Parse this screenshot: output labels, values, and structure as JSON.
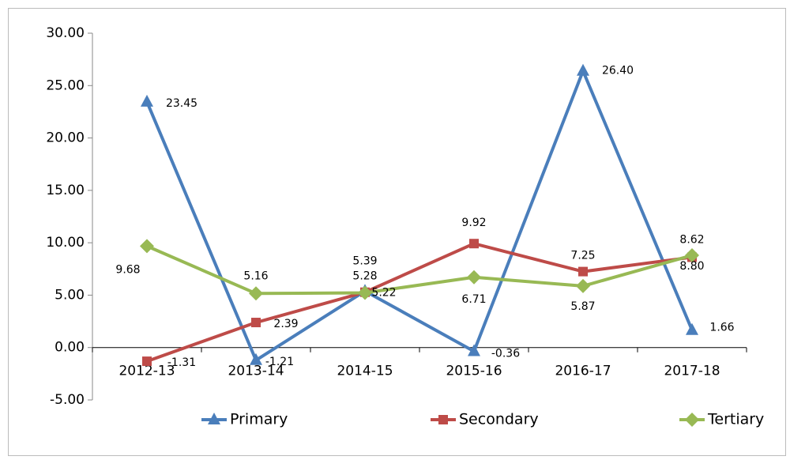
{
  "chart_data": {
    "type": "line",
    "categories": [
      "2012-13",
      "2013-14",
      "2014-15",
      "2015-16",
      "2016-17",
      "2017-18"
    ],
    "series": [
      {
        "name": "Primary",
        "color": "#4a7ebb",
        "marker": "triangle",
        "values": [
          23.45,
          -1.21,
          5.39,
          -0.36,
          26.4,
          1.66
        ],
        "value_labels": [
          "23.45",
          "-1.21",
          "5.39",
          "-0.36",
          "26.40",
          "1.66"
        ]
      },
      {
        "name": "Secondary",
        "color": "#be4b48",
        "marker": "square",
        "values": [
          -1.31,
          2.39,
          5.28,
          9.92,
          7.25,
          8.62
        ],
        "value_labels": [
          "-1.31",
          "2.39",
          "5.28",
          "9.92",
          "7.25",
          "8.62"
        ]
      },
      {
        "name": "Tertiary",
        "color": "#98b954",
        "marker": "diamond",
        "values": [
          9.68,
          5.16,
          5.22,
          6.71,
          5.87,
          8.8
        ],
        "value_labels": [
          "9.68",
          "5.16",
          "5.22",
          "6.71",
          "5.87",
          "8.80"
        ]
      }
    ],
    "ylim": [
      -5,
      30
    ],
    "yticks": [
      {
        "value": -5,
        "label": "-5.00"
      },
      {
        "value": 0,
        "label": "0.00"
      },
      {
        "value": 5,
        "label": "5.00"
      },
      {
        "value": 10,
        "label": "10.00"
      },
      {
        "value": 15,
        "label": "15.00"
      },
      {
        "value": 20,
        "label": "20.00"
      },
      {
        "value": 25,
        "label": "25.00"
      },
      {
        "value": 30,
        "label": "30.00"
      }
    ],
    "grid": false,
    "legend": "bottom"
  }
}
